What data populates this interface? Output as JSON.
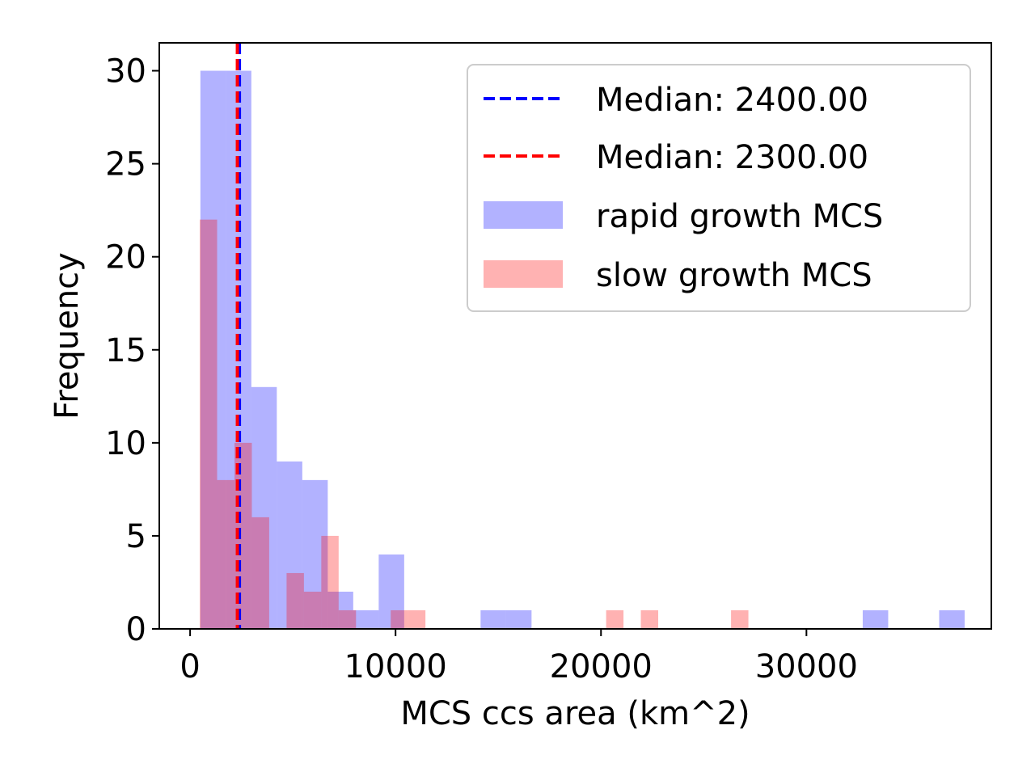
{
  "chart_data": {
    "type": "histogram",
    "xlabel": "MCS ccs area (km^2)",
    "ylabel": "Frequency",
    "xlim": [
      -1500,
      39000
    ],
    "ylim": [
      0,
      31.5
    ],
    "xticks": [
      0,
      10000,
      20000,
      30000
    ],
    "yticks": [
      0,
      5,
      10,
      15,
      20,
      25,
      30
    ],
    "grid": false,
    "legend_position": "upper right",
    "series": [
      {
        "name": "rapid growth MCS",
        "color": "#0000ff",
        "alpha": 0.3,
        "bin_width": 1240,
        "bins": [
          [
            500,
            30
          ],
          [
            1740,
            30
          ],
          [
            2980,
            13
          ],
          [
            4220,
            9
          ],
          [
            5460,
            8
          ],
          [
            6700,
            2
          ],
          [
            7940,
            1
          ],
          [
            9180,
            4
          ],
          [
            14140,
            1
          ],
          [
            15380,
            1
          ],
          [
            32740,
            1
          ],
          [
            36460,
            1
          ]
        ]
      },
      {
        "name": "slow growth MCS",
        "color": "#ff0000",
        "alpha": 0.3,
        "bin_width": 845,
        "bins": [
          [
            470,
            22
          ],
          [
            1315,
            8
          ],
          [
            2160,
            10
          ],
          [
            3005,
            6
          ],
          [
            4695,
            3
          ],
          [
            5540,
            2
          ],
          [
            6385,
            5
          ],
          [
            7230,
            1
          ],
          [
            9765,
            1
          ],
          [
            10610,
            1
          ],
          [
            20250,
            1
          ],
          [
            21940,
            1
          ],
          [
            26330,
            1
          ]
        ]
      }
    ],
    "median_lines": [
      {
        "label": "Median: 2400.00",
        "value": 2400,
        "color": "#0000ff"
      },
      {
        "label": "Median: 2300.00",
        "value": 2300,
        "color": "#ff0000"
      }
    ]
  }
}
